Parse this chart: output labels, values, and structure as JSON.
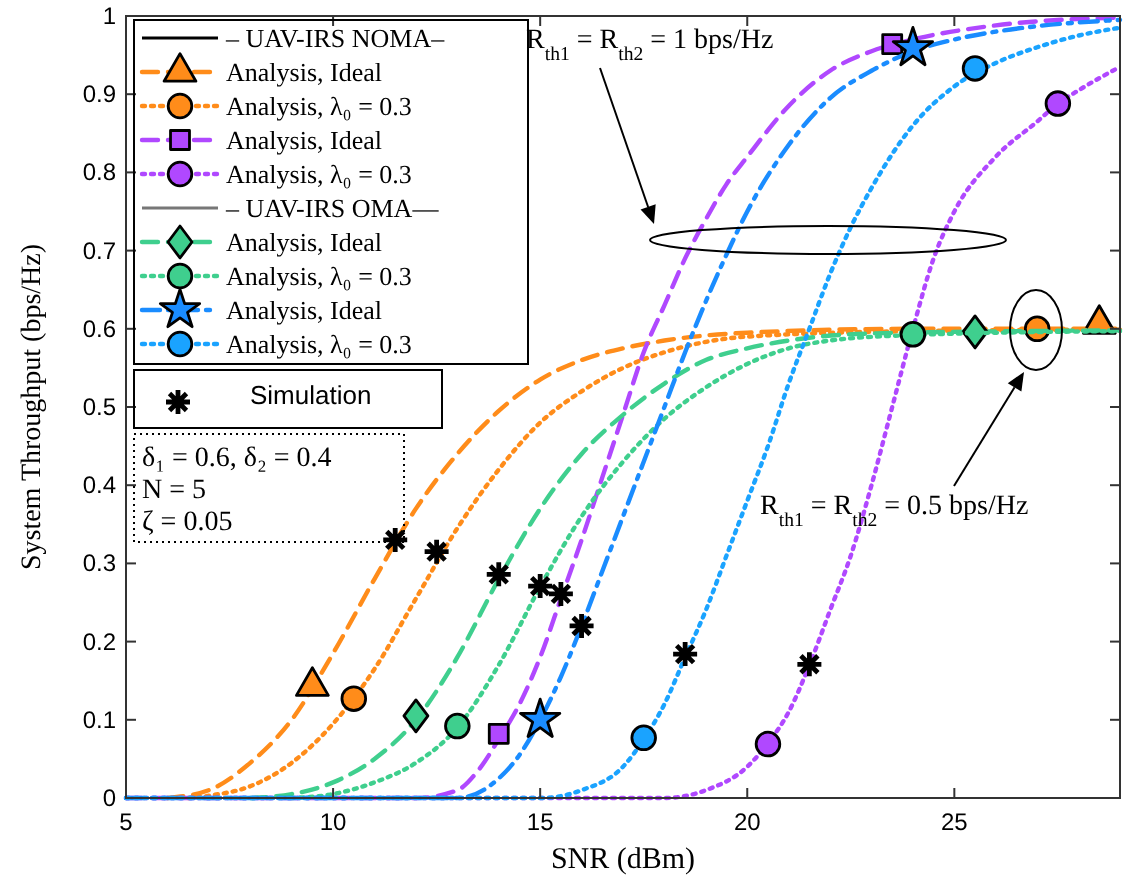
{
  "chart_data": {
    "type": "line",
    "xlabel": "SNR (dBm)",
    "ylabel": "System Throughput (bps/Hz)",
    "xlim": [
      5,
      29
    ],
    "xticks": [
      5,
      10,
      15,
      20,
      25
    ],
    "ylim": [
      0,
      1
    ],
    "yticks": [
      0,
      0.1,
      0.2,
      0.3,
      0.4,
      0.5,
      0.6,
      0.7,
      0.8,
      0.9,
      1
    ],
    "legend": "top left",
    "annotations": [
      "– UAV-IRS NOMA–",
      "– UAV-IRS OMA—",
      "δ₁ = 0.6, δ₂ = 0.4",
      "N = 5",
      "ζ = 0.05",
      "R$_{th1}$ = R$_{th2}$ = 1 bps/Hz",
      "R$_{th1}$ = R$_{th2}$ = 0.5 bps/Hz"
    ],
    "series": [
      {
        "name": "Analysis, Ideal",
        "color": "#ff8c1a",
        "line_style": "dashed",
        "x": [
          6,
          7,
          8,
          9,
          10,
          11,
          12,
          13,
          14,
          15,
          16,
          17,
          18,
          20,
          24,
          29
        ],
        "values": [
          0,
          0.01,
          0.045,
          0.1,
          0.185,
          0.28,
          0.37,
          0.44,
          0.495,
          0.535,
          0.56,
          0.575,
          0.585,
          0.595,
          0.6,
          0.6
        ]
      },
      {
        "type": "scatter",
        "color": "#ff8c1a",
        "marker": "triangle",
        "x": [
          9.5,
          28.5
        ],
        "values": [
          0.143,
          0.606
        ]
      },
      {
        "name": "Analysis, λ₀ = 0.3",
        "color": "#ff8c1a",
        "line_style": "dotted",
        "x": [
          6.5,
          7,
          8,
          9,
          10,
          11,
          12,
          13,
          14,
          15,
          16,
          17,
          18,
          20,
          24,
          29
        ],
        "values": [
          0,
          0.003,
          0.015,
          0.045,
          0.095,
          0.165,
          0.255,
          0.345,
          0.42,
          0.48,
          0.52,
          0.55,
          0.57,
          0.59,
          0.597,
          0.599
        ]
      },
      {
        "type": "scatter",
        "color": "#ff8c1a",
        "marker": "circle",
        "x": [
          10.5,
          27
        ],
        "values": [
          0.127,
          0.6
        ]
      },
      {
        "name": "Analysis, Ideal",
        "color": "#b048ff",
        "line_style": "dashed",
        "x": [
          5,
          12,
          13,
          13.5,
          14,
          14.5,
          15,
          15.5,
          16,
          16.5,
          17,
          17.5,
          18,
          18.5,
          19,
          19.5,
          20,
          21,
          22,
          23,
          24,
          26,
          29
        ],
        "values": [
          0,
          0,
          0.01,
          0.035,
          0.075,
          0.12,
          0.18,
          0.255,
          0.33,
          0.41,
          0.49,
          0.57,
          0.63,
          0.69,
          0.74,
          0.785,
          0.82,
          0.885,
          0.93,
          0.955,
          0.97,
          0.988,
          0.998
        ]
      },
      {
        "type": "scatter",
        "color": "#b048ff",
        "marker": "square",
        "x": [
          14,
          23.5
        ],
        "values": [
          0.082,
          0.964
        ]
      },
      {
        "name": "Analysis, λ₀ = 0.3",
        "color": "#b048ff",
        "line_style": "dotted",
        "x": [
          5,
          18,
          19,
          20,
          20.5,
          21,
          21.5,
          22,
          22.5,
          23,
          23.5,
          24,
          24.5,
          25,
          26,
          27,
          27.5,
          28,
          29
        ],
        "values": [
          0,
          0,
          0.01,
          0.04,
          0.07,
          0.11,
          0.17,
          0.24,
          0.31,
          0.4,
          0.5,
          0.6,
          0.69,
          0.75,
          0.82,
          0.865,
          0.888,
          0.905,
          0.935
        ]
      },
      {
        "type": "scatter",
        "color": "#b048ff",
        "marker": "circle",
        "x": [
          20.5,
          27.5
        ],
        "values": [
          0.069,
          0.888
        ]
      },
      {
        "name": "Analysis, Ideal",
        "color": "#3fcf8e",
        "line_style": "dashed",
        "x": [
          8,
          9,
          10,
          11,
          12,
          13,
          14,
          15,
          16,
          17,
          18,
          19,
          20,
          21,
          23,
          29
        ],
        "values": [
          0,
          0.005,
          0.02,
          0.05,
          0.1,
          0.18,
          0.28,
          0.37,
          0.44,
          0.49,
          0.53,
          0.56,
          0.575,
          0.585,
          0.594,
          0.598
        ]
      },
      {
        "type": "scatter",
        "color": "#3fcf8e",
        "marker": "diamond",
        "x": [
          12,
          25.5
        ],
        "values": [
          0.105,
          0.596
        ]
      },
      {
        "name": "Analysis, λ₀ = 0.3",
        "color": "#3fcf8e",
        "line_style": "dotted",
        "x": [
          9,
          10,
          11,
          12,
          13,
          14,
          15,
          16,
          17,
          18,
          19,
          20,
          21,
          22,
          24,
          29
        ],
        "values": [
          0,
          0.005,
          0.02,
          0.045,
          0.09,
          0.17,
          0.27,
          0.36,
          0.43,
          0.485,
          0.525,
          0.555,
          0.575,
          0.585,
          0.592,
          0.597
        ]
      },
      {
        "type": "scatter",
        "color": "#3fcf8e",
        "marker": "circle",
        "x": [
          13,
          24
        ],
        "values": [
          0.092,
          0.593
        ]
      },
      {
        "name": "Analysis, Ideal",
        "color": "#1a8cff",
        "line_style": "dashdot",
        "x": [
          5,
          13,
          14,
          14.5,
          15,
          15.5,
          16,
          16.5,
          17,
          17.5,
          18,
          18.5,
          19,
          19.5,
          20,
          21,
          22,
          23,
          24,
          25,
          26,
          27,
          29
        ],
        "values": [
          0,
          0,
          0.025,
          0.055,
          0.1,
          0.155,
          0.22,
          0.29,
          0.36,
          0.43,
          0.5,
          0.57,
          0.635,
          0.695,
          0.75,
          0.835,
          0.895,
          0.93,
          0.955,
          0.97,
          0.98,
          0.987,
          0.995
        ]
      },
      {
        "type": "scatter",
        "color": "#1a8cff",
        "marker": "star",
        "x": [
          15,
          24
        ],
        "values": [
          0.1,
          0.959
        ]
      },
      {
        "name": "Analysis, λ₀ = 0.3",
        "color": "#1aa3ff",
        "line_style": "dotted",
        "x": [
          5,
          15,
          16,
          17,
          17.5,
          18,
          18.5,
          19,
          19.5,
          20,
          20.5,
          21,
          21.5,
          22,
          22.5,
          23,
          24,
          25,
          26,
          27,
          28,
          29
        ],
        "values": [
          0,
          0,
          0.01,
          0.04,
          0.075,
          0.12,
          0.18,
          0.24,
          0.31,
          0.38,
          0.45,
          0.53,
          0.6,
          0.67,
          0.73,
          0.78,
          0.86,
          0.91,
          0.94,
          0.96,
          0.975,
          0.985
        ]
      },
      {
        "type": "scatter",
        "color": "#1aa3ff",
        "marker": "circle",
        "x": [
          17.5,
          25.5
        ],
        "values": [
          0.077,
          0.933
        ]
      },
      {
        "type": "scatter",
        "name": "Simulation",
        "color": "#000000",
        "marker": "cross",
        "x": [
          11.5,
          12.5,
          14,
          15,
          15.5,
          16,
          18.5,
          21.5
        ],
        "values": [
          0.33,
          0.315,
          0.286,
          0.271,
          0.261,
          0.22,
          0.184,
          0.171
        ]
      }
    ]
  }
}
